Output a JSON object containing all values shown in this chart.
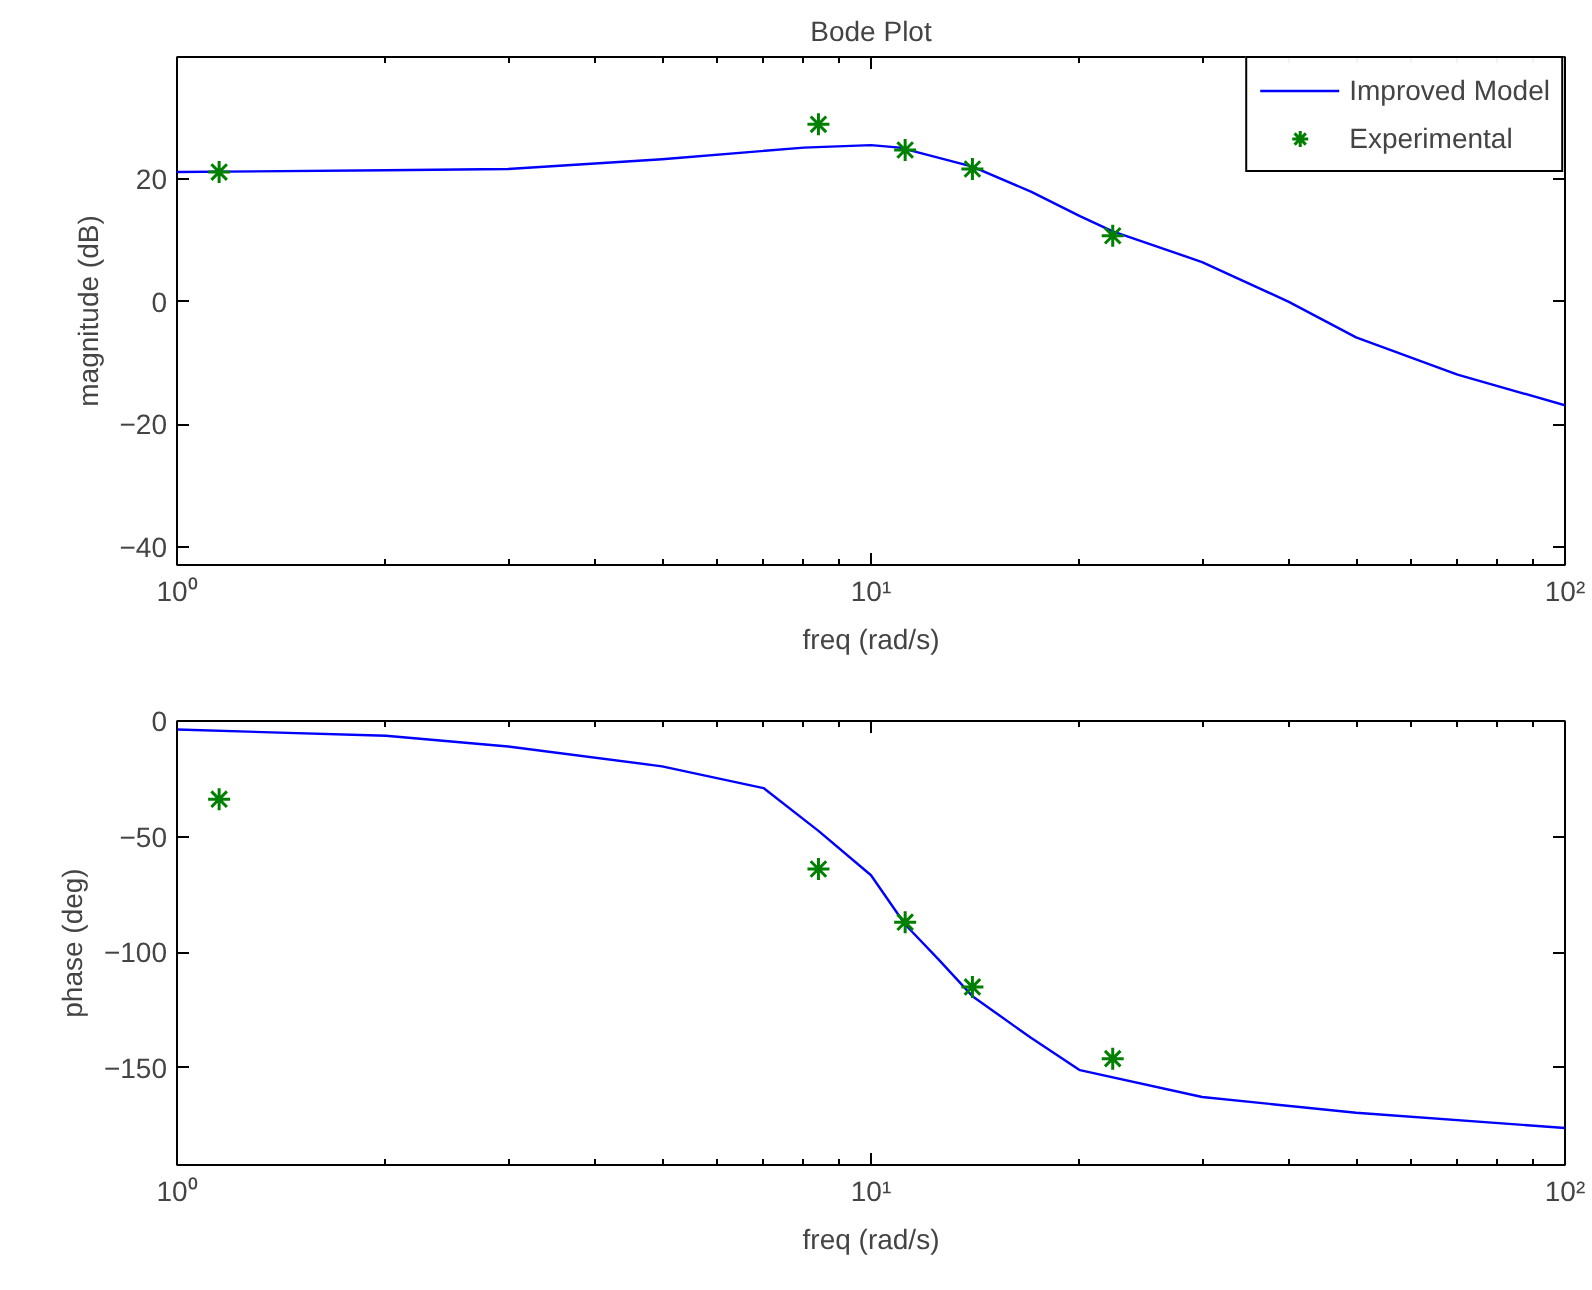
{
  "chart_data": [
    {
      "type": "line",
      "title": "Bode Plot",
      "xlabel": "freq (rad/s)",
      "ylabel": "magnitude (dB)",
      "log": "x",
      "grid": false,
      "legend": "top right",
      "xlim": [
        1,
        100
      ],
      "xticks": [
        {
          "value": 1,
          "label": "10⁰"
        },
        {
          "value": 10,
          "label": "10¹"
        },
        {
          "value": 100,
          "label": "10²"
        }
      ],
      "ylim": [
        -43,
        40
      ],
      "yticks": [
        -40,
        -20,
        0,
        20
      ],
      "series": [
        {
          "name": "Improved Model",
          "color": "#0000ff",
          "marker": "none",
          "line_style": "solid",
          "x": [
            1,
            2,
            3,
            5,
            8,
            10,
            11,
            14,
            17,
            20,
            22.3,
            30,
            40,
            50,
            70,
            100
          ],
          "values": [
            21.2,
            21.5,
            21.7,
            23.3,
            25.2,
            25.6,
            25.2,
            22.1,
            18,
            14,
            11.5,
            6.5,
            0,
            -5.8,
            -11.9,
            -16.9
          ]
        },
        {
          "name": "Experimental",
          "type": "scatter",
          "color": "#008000",
          "marker": "cross",
          "x": [
            1.15,
            8.4,
            11.2,
            14.0,
            22.3
          ],
          "values": [
            21.2,
            29.0,
            24.8,
            21.7,
            10.8
          ]
        }
      ]
    },
    {
      "type": "line",
      "xlabel": "freq (rad/s)",
      "ylabel": "phase (deg)",
      "log": "x",
      "grid": false,
      "xlim": [
        1,
        100
      ],
      "xticks": [
        {
          "value": 1,
          "label": "10⁰"
        },
        {
          "value": 10,
          "label": "10¹"
        },
        {
          "value": 100,
          "label": "10²"
        }
      ],
      "ylim": [
        -192,
        0
      ],
      "yticks": [
        -150,
        -100,
        -50,
        0
      ],
      "series": [
        {
          "color": "#0000ff",
          "marker": "none",
          "line_style": "solid",
          "x": [
            1,
            2,
            3,
            5,
            7,
            8.4,
            10,
            11.2,
            12.5,
            14,
            17,
            20,
            30,
            50,
            100
          ],
          "values": [
            -3.7,
            -6.4,
            -11,
            -19.6,
            -29,
            -47.5,
            -66.7,
            -88,
            -103,
            -119,
            -137,
            -151,
            -162.6,
            -169.4,
            -176
          ]
        },
        {
          "type": "scatter",
          "color": "#008000",
          "marker": "cross",
          "x": [
            1.15,
            8.4,
            11.2,
            14.0,
            22.3
          ],
          "values": [
            -33.8,
            -64,
            -87,
            -115,
            -146
          ]
        }
      ]
    }
  ]
}
